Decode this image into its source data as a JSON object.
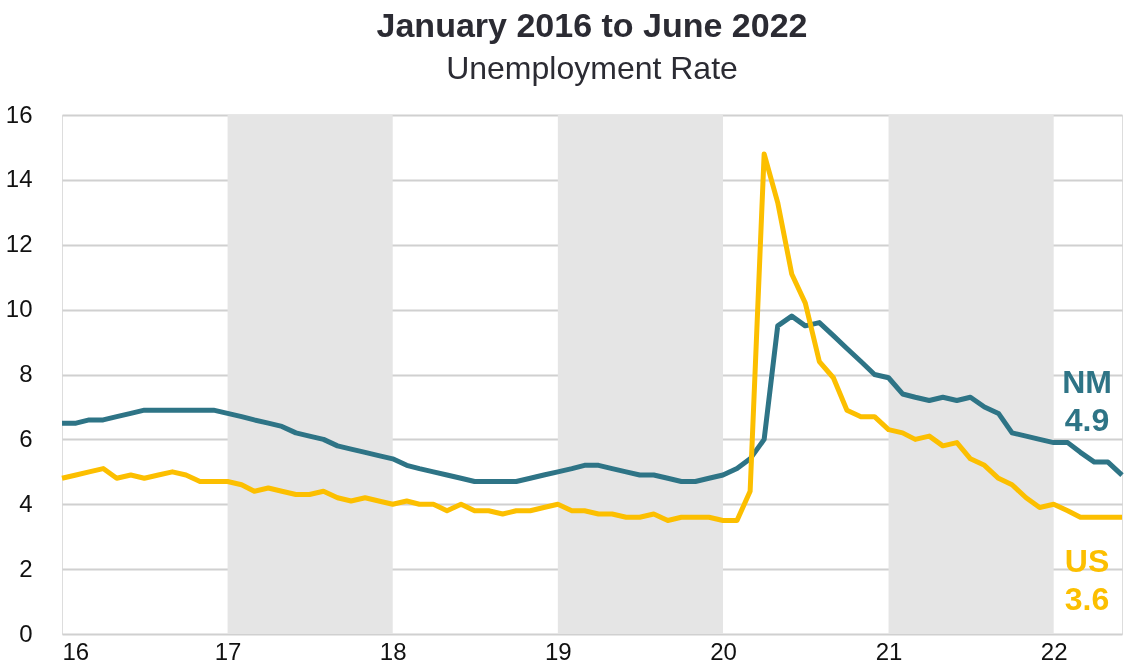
{
  "chart_data": {
    "type": "line",
    "title": "January 2016 to June 2022",
    "subtitle": "Unemployment Rate",
    "x": [
      "2016-01",
      "2016-02",
      "2016-03",
      "2016-04",
      "2016-05",
      "2016-06",
      "2016-07",
      "2016-08",
      "2016-09",
      "2016-10",
      "2016-11",
      "2016-12",
      "2017-01",
      "2017-02",
      "2017-03",
      "2017-04",
      "2017-05",
      "2017-06",
      "2017-07",
      "2017-08",
      "2017-09",
      "2017-10",
      "2017-11",
      "2017-12",
      "2018-01",
      "2018-02",
      "2018-03",
      "2018-04",
      "2018-05",
      "2018-06",
      "2018-07",
      "2018-08",
      "2018-09",
      "2018-10",
      "2018-11",
      "2018-12",
      "2019-01",
      "2019-02",
      "2019-03",
      "2019-04",
      "2019-05",
      "2019-06",
      "2019-07",
      "2019-08",
      "2019-09",
      "2019-10",
      "2019-11",
      "2019-12",
      "2020-01",
      "2020-02",
      "2020-03",
      "2020-04",
      "2020-05",
      "2020-06",
      "2020-07",
      "2020-08",
      "2020-09",
      "2020-10",
      "2020-11",
      "2020-12",
      "2021-01",
      "2021-02",
      "2021-03",
      "2021-04",
      "2021-05",
      "2021-06",
      "2021-07",
      "2021-08",
      "2021-09",
      "2021-10",
      "2021-11",
      "2021-12",
      "2022-01",
      "2022-02",
      "2022-03",
      "2022-04",
      "2022-05",
      "2022-06"
    ],
    "series": [
      {
        "name": "NM",
        "color": "#2e7486",
        "values": [
          6.5,
          6.5,
          6.6,
          6.6,
          6.7,
          6.8,
          6.9,
          6.9,
          6.9,
          6.9,
          6.9,
          6.9,
          6.8,
          6.7,
          6.6,
          6.5,
          6.4,
          6.2,
          6.1,
          6.0,
          5.8,
          5.7,
          5.6,
          5.5,
          5.4,
          5.2,
          5.1,
          5.0,
          4.9,
          4.8,
          4.7,
          4.7,
          4.7,
          4.7,
          4.8,
          4.9,
          5.0,
          5.1,
          5.2,
          5.2,
          5.1,
          5.0,
          4.9,
          4.9,
          4.8,
          4.7,
          4.7,
          4.8,
          4.9,
          5.1,
          5.4,
          6.0,
          9.5,
          9.8,
          9.5,
          9.6,
          9.2,
          8.8,
          8.4,
          8.0,
          7.9,
          7.4,
          7.3,
          7.2,
          7.3,
          7.2,
          7.3,
          7.0,
          6.8,
          6.2,
          6.1,
          6.0,
          5.9,
          5.9,
          5.6,
          5.3,
          5.3,
          4.9
        ],
        "value_labels": [
          null,
          null,
          null,
          null,
          null,
          null,
          null,
          null,
          null,
          null,
          null,
          null,
          null,
          null,
          null,
          null,
          null,
          null,
          null,
          null,
          null,
          null,
          null,
          null,
          null,
          null,
          null,
          null,
          null,
          null,
          null,
          null,
          null,
          null,
          null,
          null,
          null,
          null,
          null,
          null,
          null,
          null,
          null,
          null,
          null,
          null,
          null,
          null,
          null,
          null,
          null,
          null,
          null,
          null,
          null,
          null,
          null,
          null,
          null,
          null,
          null,
          null,
          null,
          null,
          null,
          null,
          null,
          null,
          null,
          null,
          null,
          null,
          null,
          null,
          null,
          null,
          null,
          "4.9"
        ]
      },
      {
        "name": "US",
        "color": "#fcbf00",
        "values": [
          4.8,
          4.9,
          5.0,
          5.1,
          4.8,
          4.9,
          4.8,
          4.9,
          5.0,
          4.9,
          4.7,
          4.7,
          4.7,
          4.6,
          4.4,
          4.5,
          4.4,
          4.3,
          4.3,
          4.4,
          4.2,
          4.1,
          4.2,
          4.1,
          4.0,
          4.1,
          4.0,
          4.0,
          3.8,
          4.0,
          3.8,
          3.8,
          3.7,
          3.8,
          3.8,
          3.9,
          4.0,
          3.8,
          3.8,
          3.7,
          3.7,
          3.6,
          3.6,
          3.7,
          3.5,
          3.6,
          3.6,
          3.6,
          3.5,
          3.5,
          4.4,
          14.8,
          13.3,
          11.1,
          10.2,
          8.4,
          7.9,
          6.9,
          6.7,
          6.7,
          6.3,
          6.2,
          6.0,
          6.1,
          5.8,
          5.9,
          5.4,
          5.2,
          4.8,
          4.6,
          4.2,
          3.9,
          4.0,
          3.8,
          3.6,
          3.6,
          3.6,
          3.6
        ],
        "value_labels": [
          null,
          null,
          null,
          null,
          null,
          null,
          null,
          null,
          null,
          null,
          null,
          null,
          null,
          null,
          null,
          null,
          null,
          null,
          null,
          null,
          null,
          null,
          null,
          null,
          null,
          null,
          null,
          null,
          null,
          null,
          null,
          null,
          null,
          null,
          null,
          null,
          null,
          null,
          null,
          null,
          null,
          null,
          null,
          null,
          null,
          null,
          null,
          null,
          null,
          null,
          null,
          null,
          null,
          null,
          null,
          null,
          null,
          null,
          null,
          null,
          null,
          null,
          null,
          null,
          null,
          null,
          null,
          null,
          null,
          null,
          null,
          null,
          null,
          null,
          null,
          null,
          null,
          "3.6"
        ]
      }
    ],
    "xlim": [
      "2016-01",
      "2022-06"
    ],
    "xticks": [
      {
        "value": "2016-01",
        "label": "16"
      },
      {
        "value": "2017-01",
        "label": "17"
      },
      {
        "value": "2018-01",
        "label": "18"
      },
      {
        "value": "2019-01",
        "label": "19"
      },
      {
        "value": "2020-01",
        "label": "20"
      },
      {
        "value": "2021-01",
        "label": "21"
      },
      {
        "value": "2022-01",
        "label": "22"
      }
    ],
    "ylim": [
      0,
      16
    ],
    "yticks": [
      0,
      2,
      4,
      6,
      8,
      10,
      12,
      14,
      16
    ],
    "bands": [
      {
        "axis": "x",
        "from": "2017-01",
        "to": "2018-01",
        "color": "#e5e5e5"
      },
      {
        "axis": "x",
        "from": "2019-01",
        "to": "2020-01",
        "color": "#e5e5e5"
      },
      {
        "axis": "x",
        "from": "2021-01",
        "to": "2022-01",
        "color": "#e5e5e5"
      }
    ],
    "grid": "y",
    "legend": false,
    "marker": "none",
    "line_style": "solid"
  }
}
